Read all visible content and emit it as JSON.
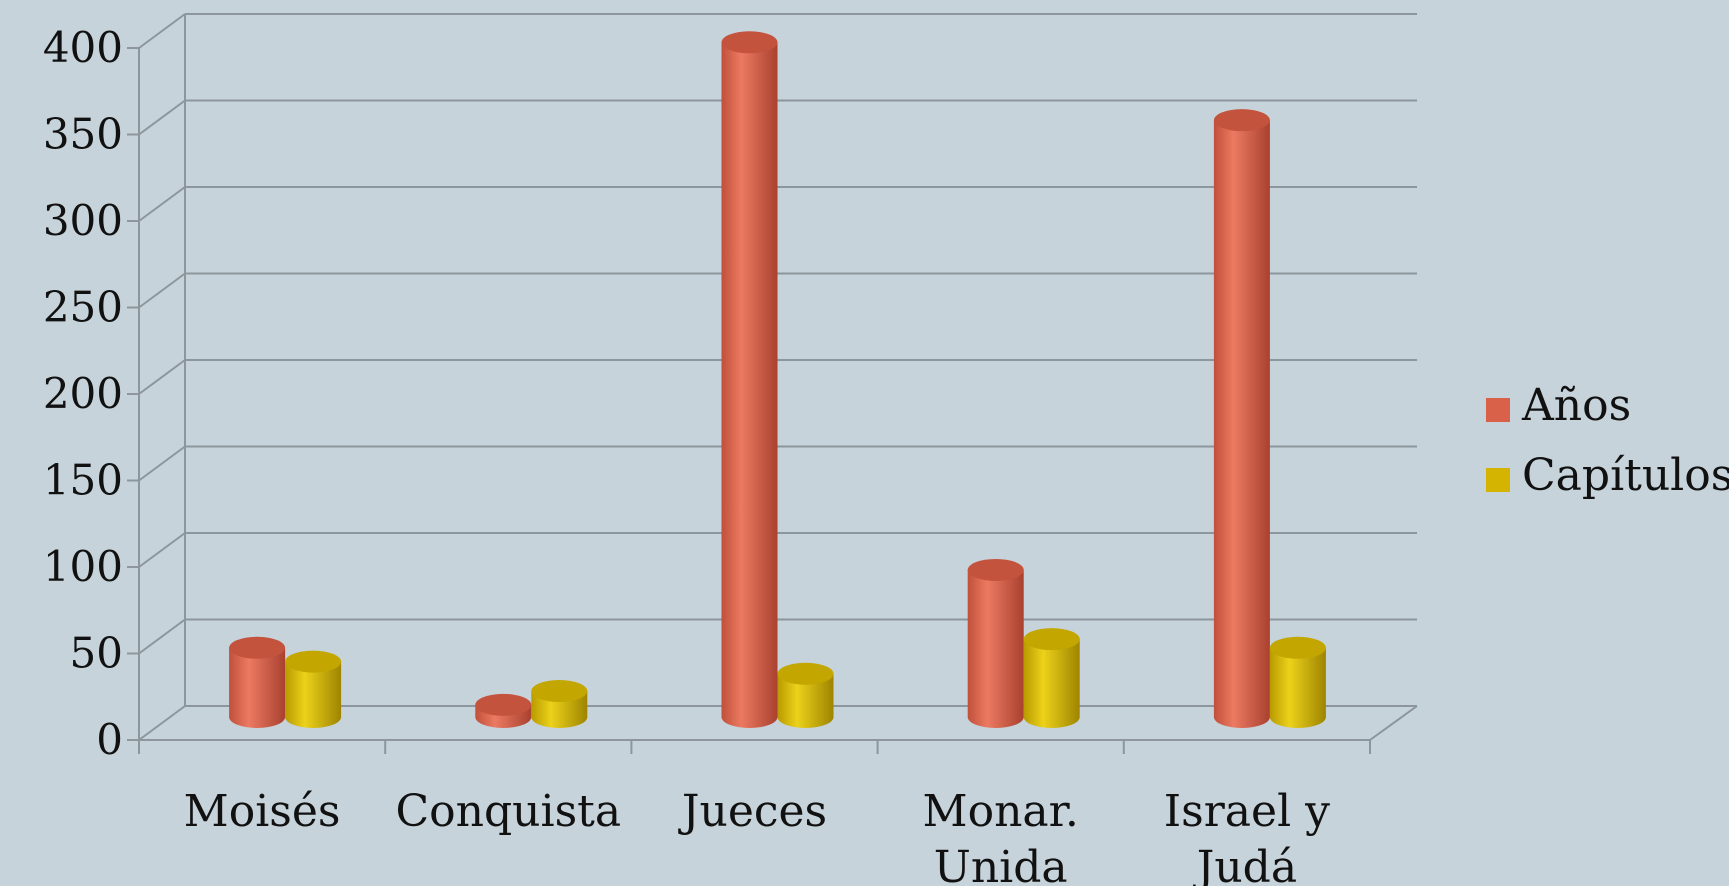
{
  "chart_data": {
    "type": "bar",
    "title": "",
    "xlabel": "",
    "ylabel": "",
    "categories": [
      [
        "Moisés"
      ],
      [
        "Conquista"
      ],
      [
        "Jueces"
      ],
      [
        "Monar.",
        "Unida"
      ],
      [
        "Israel y",
        "Judá"
      ]
    ],
    "series": [
      {
        "name": "Años",
        "color": "#d9614a",
        "values": [
          40,
          7,
          390,
          85,
          345
        ]
      },
      {
        "name": "Capítulos",
        "color": "#d4b400",
        "values": [
          32,
          15,
          25,
          45,
          40
        ]
      }
    ],
    "ylim": [
      0,
      400
    ],
    "yticks": [
      0,
      50,
      100,
      150,
      200,
      250,
      300,
      350,
      400
    ],
    "grid": true,
    "legend": "right",
    "style": "3d-cylinder"
  }
}
